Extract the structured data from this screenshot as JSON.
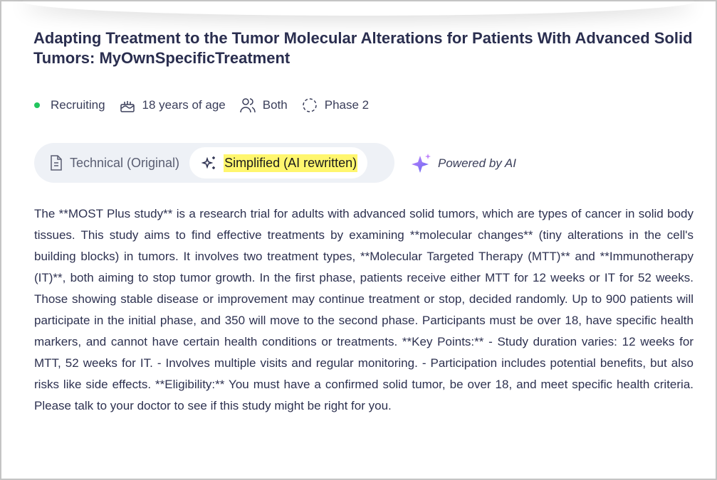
{
  "trial": {
    "title": "Adapting Treatment to the Tumor Molecular Alterations for Patients With Advanced Solid Tumors: MyOwnSpecificTreatment"
  },
  "meta": {
    "status": "Recruiting",
    "status_color": "#22c55e",
    "age": "18 years of age",
    "gender": "Both",
    "phase": "Phase 2"
  },
  "toggle": {
    "technical": "Technical (Original)",
    "simplified": "Simplified (AI rewritten)",
    "active": "simplified"
  },
  "powered": "Powered by AI",
  "description": "The **MOST Plus study** is a research trial for adults with advanced solid tumors, which are types of cancer in solid body tissues. This study aims to find effective treatments by examining **molecular changes** (tiny alterations in the cell's building blocks) in tumors. It involves two treatment types, **Molecular Targeted Therapy (MTT)** and **Immunotherapy (IT)**, both aiming to stop tumor growth. In the first phase, patients receive either MTT for 12 weeks or IT for 52 weeks. Those showing stable disease or improvement may continue treatment or stop, decided randomly. Up to 900 patients will participate in the initial phase, and 350 will move to the second phase. Participants must be over 18, have specific health markers, and cannot have certain health conditions or treatments. **Key Points:** - Study duration varies: 12 weeks for MTT, 52 weeks for IT. - Involves multiple visits and regular monitoring. - Participation includes potential benefits, but also risks like side effects. **Eligibility:** You must have a confirmed solid tumor, be over 18, and meet specific health criteria. Please talk to your doctor to see if this study might be right for you."
}
